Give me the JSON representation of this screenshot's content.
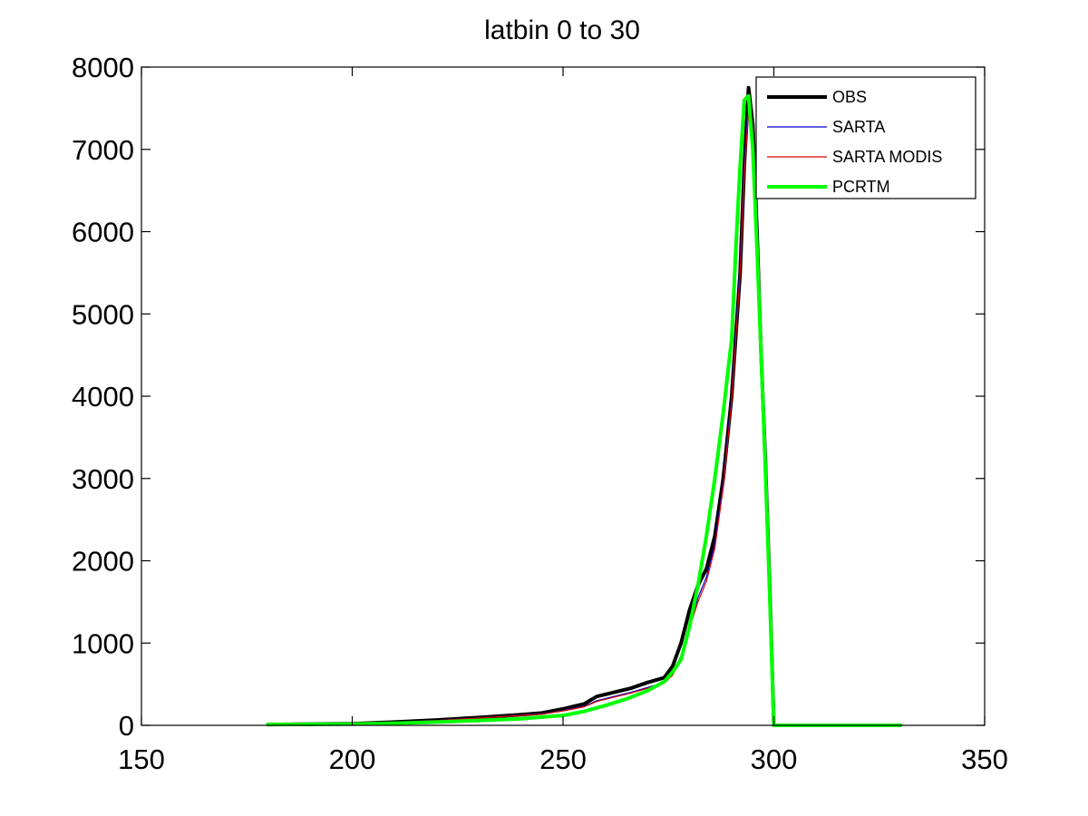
{
  "chart_data": {
    "type": "line",
    "title": "latbin 0  to 30",
    "xlabel": "",
    "ylabel": "",
    "xlim": [
      150,
      350
    ],
    "ylim": [
      0,
      8000
    ],
    "xticks": [
      "150",
      "200",
      "250",
      "300",
      "350"
    ],
    "yticks": [
      "0",
      "1000",
      "2000",
      "3000",
      "4000",
      "5000",
      "6000",
      "7000",
      "8000"
    ],
    "grid": false,
    "legend_position": "top-right",
    "series": [
      {
        "name": "OBS",
        "color": "#000000",
        "style": "thick",
        "x": [
          180,
          200,
          210,
          220,
          230,
          240,
          245,
          250,
          255,
          258,
          262,
          266,
          270,
          274,
          276,
          278,
          280,
          282,
          284,
          286,
          288,
          290,
          292,
          293,
          294,
          295,
          296,
          297,
          298,
          299,
          300,
          301,
          310,
          320,
          330
        ],
        "y": [
          10,
          20,
          40,
          65,
          95,
          130,
          150,
          200,
          260,
          350,
          400,
          450,
          520,
          580,
          720,
          1000,
          1400,
          1700,
          1900,
          2300,
          3000,
          4000,
          5500,
          6800,
          7750,
          7300,
          6000,
          4500,
          3200,
          1700,
          0,
          0,
          0,
          0,
          0
        ]
      },
      {
        "name": "SARTA",
        "color": "#0000cc",
        "style": "thin",
        "x": [
          180,
          200,
          210,
          220,
          230,
          240,
          245,
          250,
          255,
          258,
          262,
          266,
          270,
          274,
          276,
          278,
          280,
          282,
          284,
          286,
          288,
          290,
          292,
          293,
          294,
          295,
          296,
          297,
          298,
          299,
          300,
          301,
          310,
          320,
          330
        ],
        "y": [
          10,
          20,
          40,
          60,
          90,
          125,
          140,
          180,
          230,
          300,
          350,
          400,
          460,
          520,
          620,
          850,
          1200,
          1550,
          1800,
          2200,
          2950,
          4000,
          5600,
          6800,
          7600,
          7100,
          5800,
          4400,
          3100,
          1600,
          0,
          0,
          0,
          0,
          0
        ]
      },
      {
        "name": "SARTA MODIS",
        "color": "#dd0000",
        "style": "thin",
        "x": [
          180,
          200,
          210,
          220,
          230,
          240,
          245,
          250,
          255,
          258,
          262,
          266,
          270,
          274,
          276,
          278,
          280,
          282,
          284,
          286,
          288,
          290,
          292,
          293,
          294,
          295,
          296,
          297,
          298,
          299,
          300,
          301,
          310,
          320,
          330
        ],
        "y": [
          10,
          20,
          38,
          58,
          88,
          120,
          135,
          175,
          225,
          290,
          340,
          390,
          450,
          510,
          610,
          830,
          1180,
          1500,
          1750,
          2150,
          2900,
          3950,
          5500,
          6700,
          7500,
          7000,
          5700,
          4300,
          3000,
          1550,
          0,
          0,
          0,
          0,
          0
        ]
      },
      {
        "name": "PCRTM",
        "color": "#00ff00",
        "style": "thick",
        "x": [
          180,
          200,
          210,
          220,
          230,
          240,
          245,
          250,
          255,
          260,
          265,
          270,
          274,
          276,
          278,
          280,
          282,
          284,
          286,
          288,
          290,
          291,
          292,
          293,
          294,
          295,
          296,
          297,
          298,
          299,
          300,
          301,
          310,
          320,
          330
        ],
        "y": [
          10,
          15,
          25,
          40,
          60,
          80,
          100,
          120,
          170,
          240,
          320,
          420,
          530,
          650,
          800,
          1200,
          1700,
          2300,
          3000,
          3800,
          4700,
          5800,
          6800,
          7600,
          7650,
          7000,
          5800,
          4500,
          3100,
          1600,
          0,
          0,
          0,
          0,
          0
        ]
      }
    ]
  }
}
